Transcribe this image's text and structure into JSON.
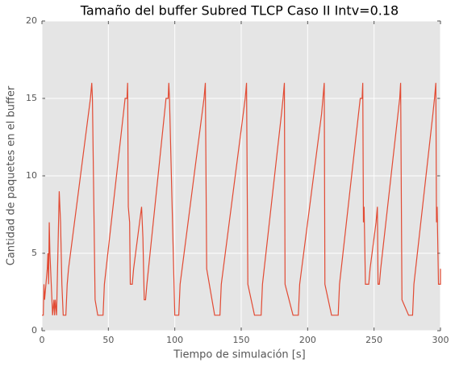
{
  "chart_data": {
    "type": "line",
    "title": "Tamaño del buffer Subred TLCP Caso II Intv=0.18",
    "xlabel": "Tiempo de simulación [s]",
    "ylabel": "Cantidad de paquetes en el buffer",
    "xlim": [
      0,
      300
    ],
    "xticks": [
      0,
      50,
      100,
      150,
      200,
      250,
      300
    ],
    "ylim": [
      0,
      20
    ],
    "yticks": [
      0,
      5,
      10,
      15,
      20
    ],
    "grid": true,
    "background": "#e5e5e5",
    "x": [
      0,
      1,
      1.5,
      2,
      3,
      4,
      4.5,
      5,
      5.5,
      6,
      7,
      8,
      9,
      9.5,
      10,
      11,
      12,
      13,
      14,
      15,
      16,
      18,
      19,
      20,
      21.5,
      23,
      24.5,
      26,
      27.5,
      29,
      30.5,
      32,
      33.5,
      35,
      36.5,
      37.5,
      38,
      40,
      42,
      46,
      47,
      48.3,
      49.6,
      50.9,
      52.2,
      53.5,
      54.8,
      56.1,
      57.4,
      58.7,
      60,
      61.3,
      62.6,
      64,
      64.5,
      65,
      66,
      66.5,
      68,
      69,
      70.5,
      72,
      73.5,
      75,
      76,
      77,
      78,
      79,
      80.2,
      81.4,
      82.6,
      83.8,
      85,
      86.2,
      87.4,
      88.6,
      89.8,
      91,
      92.2,
      93.4,
      95,
      95.5,
      96,
      100,
      103,
      104,
      105.5,
      107,
      108.5,
      110,
      111.5,
      113,
      114.5,
      116,
      117.5,
      119,
      120.5,
      122,
      123,
      124,
      130,
      134,
      135,
      136.5,
      138,
      139.5,
      141,
      142.5,
      144,
      145.5,
      147,
      148.5,
      150,
      151.5,
      153,
      154,
      155,
      160,
      165,
      166,
      167.3,
      168.6,
      169.9,
      171.2,
      172.5,
      173.8,
      175.1,
      176.4,
      177.7,
      179,
      180.3,
      181.5,
      182.5,
      183,
      189,
      193,
      194,
      195.5,
      197,
      198.5,
      200,
      201.5,
      203,
      204.5,
      206,
      207.5,
      209,
      210.5,
      211.5,
      212.5,
      213,
      218,
      223,
      224,
      225.3,
      226.6,
      227.9,
      229.2,
      230.5,
      231.8,
      233.1,
      234.4,
      235.7,
      237,
      238.3,
      239.6,
      241,
      241.5,
      242,
      242.5,
      243.5,
      246,
      247,
      248.5,
      250,
      251.5,
      252.5,
      253,
      254,
      255,
      256.3,
      257.6,
      258.9,
      260.2,
      261.5,
      262.8,
      264.1,
      265.4,
      266.7,
      268,
      269.3,
      270,
      271,
      276,
      279,
      280,
      281.3,
      282.6,
      283.9,
      285.2,
      286.5,
      287.8,
      289.1,
      290.4,
      291.7,
      293,
      294.3,
      295.5,
      296.5,
      297,
      297.5,
      298.5,
      300,
      300
    ],
    "series": [
      {
        "color": "#e24a33",
        "values": [
          1,
          1,
          3,
          2,
          3,
          4,
          5,
          3,
          7,
          5,
          3,
          1,
          2,
          1,
          2,
          1,
          5,
          9,
          7,
          3,
          1,
          1,
          3,
          4,
          5,
          6,
          7,
          8,
          9,
          10,
          11,
          12,
          13,
          14,
          15,
          16,
          15,
          2,
          1,
          1,
          3,
          4,
          5,
          6,
          7,
          8,
          9,
          10,
          11,
          12,
          13,
          14,
          15,
          15,
          16,
          8,
          7,
          3,
          3,
          4,
          5,
          6,
          7,
          8,
          6,
          2,
          2,
          3,
          4,
          5,
          6,
          7,
          8,
          9,
          10,
          11,
          12,
          13,
          14,
          15,
          15,
          16,
          15,
          1,
          1,
          3,
          4,
          5,
          6,
          7,
          8,
          9,
          10,
          11,
          12,
          13,
          14,
          15,
          16,
          4,
          1,
          1,
          3,
          4,
          5,
          6,
          7,
          8,
          9,
          10,
          11,
          12,
          13,
          14,
          15,
          16,
          3,
          1,
          1,
          3,
          4,
          5,
          6,
          7,
          8,
          9,
          10,
          11,
          12,
          13,
          14,
          15,
          16,
          3,
          1,
          1,
          3,
          4,
          5,
          6,
          7,
          8,
          9,
          10,
          11,
          12,
          13,
          14,
          15,
          16,
          3,
          1,
          1,
          3,
          4,
          5,
          6,
          7,
          8,
          9,
          10,
          11,
          12,
          13,
          14,
          15,
          15,
          16,
          7,
          8,
          3,
          3,
          4,
          5,
          6,
          7,
          8,
          3,
          3,
          4,
          5,
          6,
          7,
          8,
          9,
          10,
          11,
          12,
          13,
          14,
          15,
          16,
          2,
          1,
          1,
          3,
          4,
          5,
          6,
          7,
          8,
          9,
          10,
          11,
          12,
          13,
          14,
          15,
          16,
          7,
          8,
          3,
          3,
          4
        ]
      }
    ]
  }
}
